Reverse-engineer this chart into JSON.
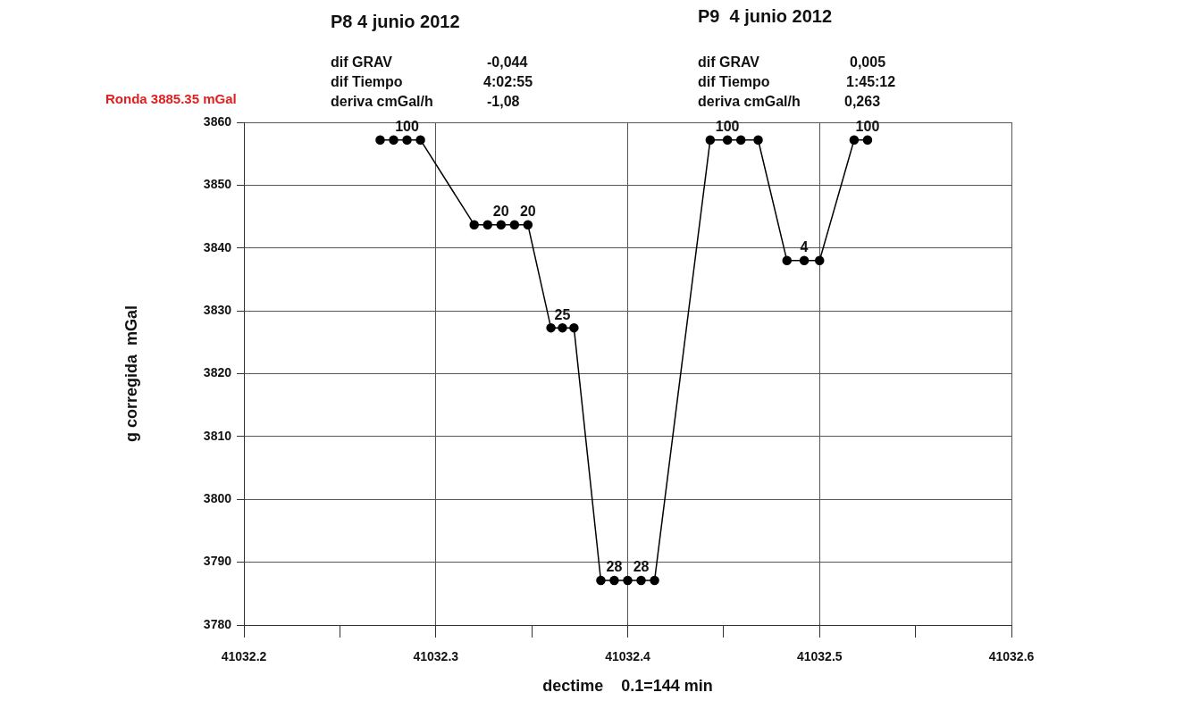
{
  "chart_data": {
    "type": "line",
    "x": [
      41032.271,
      41032.278,
      41032.285,
      41032.292,
      41032.32,
      41032.327,
      41032.334,
      41032.341,
      41032.348,
      41032.36,
      41032.366,
      41032.372,
      41032.386,
      41032.393,
      41032.4,
      41032.407,
      41032.414,
      41032.443,
      41032.452,
      41032.459,
      41032.468,
      41032.483,
      41032.492,
      41032.5,
      41032.518,
      41032.525
    ],
    "series": [
      {
        "color": "#000000",
        "values": [
          3857.2,
          3857.2,
          3857.2,
          3857.2,
          3843.7,
          3843.7,
          3843.7,
          3843.7,
          3843.7,
          3827.3,
          3827.3,
          3827.3,
          3787.1,
          3787.1,
          3787.1,
          3787.1,
          3787.1,
          3857.2,
          3857.2,
          3857.2,
          3857.2,
          3838.0,
          3838.0,
          3838.0,
          3857.2,
          3857.2
        ]
      }
    ],
    "xlabel": "dectime    0.1=144 min",
    "ylabel": "g corregida  mGal",
    "xlim": [
      41032.2,
      41032.6
    ],
    "xticks": [
      41032.2,
      {
        "value": 41032.25,
        "label": null
      },
      41032.3,
      {
        "value": 41032.35,
        "label": null
      },
      41032.4,
      {
        "value": 41032.45,
        "label": null
      },
      41032.5,
      {
        "value": 41032.55,
        "label": null
      },
      41032.6
    ],
    "ylim": [
      3780,
      3860
    ],
    "yticks": [
      3780,
      3790,
      3800,
      3810,
      3820,
      3830,
      3840,
      3850,
      3860
    ],
    "grid": true,
    "legend": false,
    "marker": "circle",
    "line_style": "solid",
    "annotations": [
      "Ronda 3885.35 mGal",
      "P8 4 junio 2012",
      "dif GRAV",
      "-0,044",
      "dif Tiempo",
      "4:02:55",
      "deriva cmGal/h",
      "-1,08",
      "P9  4 junio 2012",
      "dif GRAV",
      "0,005",
      "dif Tiempo",
      "1:45:12",
      "deriva cmGal/h",
      "0,263",
      {
        "text": "100",
        "x": 41032.285,
        "y": 3857.2
      },
      {
        "text": "20",
        "x": 41032.334,
        "y": 3843.7
      },
      {
        "text": "20",
        "x": 41032.348,
        "y": 3843.7
      },
      {
        "text": "25",
        "x": 41032.366,
        "y": 3827.3
      },
      {
        "text": "28",
        "x": 41032.393,
        "y": 3787.1
      },
      {
        "text": "28",
        "x": 41032.407,
        "y": 3787.1
      },
      {
        "text": "100",
        "x": 41032.452,
        "y": 3857.2
      },
      {
        "text": "4",
        "x": 41032.492,
        "y": 3838.0
      },
      {
        "text": "100",
        "x": 41032.525,
        "y": 3857.2
      }
    ]
  }
}
